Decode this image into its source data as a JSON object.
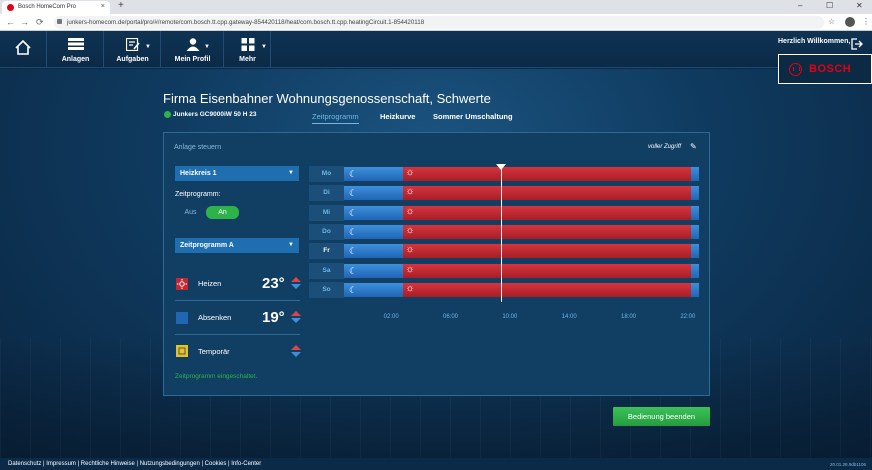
{
  "browser": {
    "tab_title": "Bosch HomeCom Pro",
    "tab_close": "×",
    "new_tab": "+",
    "url": "junkers-homecom.de/portal/pro/#/remote/com.bosch.tt.cpp.gateway-854420118/heat/com.bosch.tt.cpp.heatingCircuit.1-854420118",
    "min": "–",
    "max": "☐",
    "close": "✕",
    "back": "←",
    "forward": "→",
    "reload": "⟳",
    "star": "☆",
    "menu": "⋮"
  },
  "header": {
    "nav": [
      {
        "label": "Anlagen"
      },
      {
        "label": "Aufgaben"
      },
      {
        "label": "Mein Profil"
      },
      {
        "label": "Mehr"
      }
    ],
    "caret": "▼",
    "welcome": "Herzlich Willkommen,",
    "brand": "BOSCH"
  },
  "page": {
    "title": "Firma Eisenbahner Wohnungsgenossenschaft, Schwerte",
    "device": "Junkers GC9000iW 50 H 23",
    "tabs": [
      {
        "label": "Zeitprogramm"
      },
      {
        "label": "Heizkurve"
      },
      {
        "label": "Sommer Umschaltung"
      }
    ]
  },
  "panel": {
    "heading": "Anlage steuern",
    "access": "voller Zugriff",
    "pen": "✎",
    "circuit_select": "Heizkreis 1",
    "dd": "▼",
    "zeitprogramm_label": "Zeitprogramm:",
    "toggle_off": "Aus",
    "toggle_on": "An",
    "program_select": "Zeitprogramm A",
    "rows": [
      {
        "label": "Heizen",
        "temp": "23°"
      },
      {
        "label": "Absenken",
        "temp": "19°"
      },
      {
        "label": "Temporär",
        "temp": ""
      }
    ],
    "status": "Zeitprogramm eingeschaltet."
  },
  "schedule": {
    "days": [
      "Mo",
      "Di",
      "Mi",
      "Do",
      "Fr",
      "Sa",
      "So"
    ],
    "current_day": "Fr",
    "moon": "☾",
    "sun": "☼",
    "ticks": [
      "02:00",
      "06:00",
      "10:00",
      "14:00",
      "18:00",
      "22:00"
    ],
    "heating_start_hour": 4,
    "heating_end_hour": 23.4,
    "now_hour": 10.6
  },
  "end_button": "Bedienung beenden",
  "footer": {
    "links": "Datenschutz | Impressum | Rechtliche Hinweise | Nutzungsbedingungen | Cookies | Info-Center",
    "version": "20.01.28.9db1106"
  },
  "colors": {
    "accent_blue": "#1f6eb0",
    "heat_red": "#c22830",
    "green": "#2db34a",
    "brand_red": "#e20015"
  }
}
